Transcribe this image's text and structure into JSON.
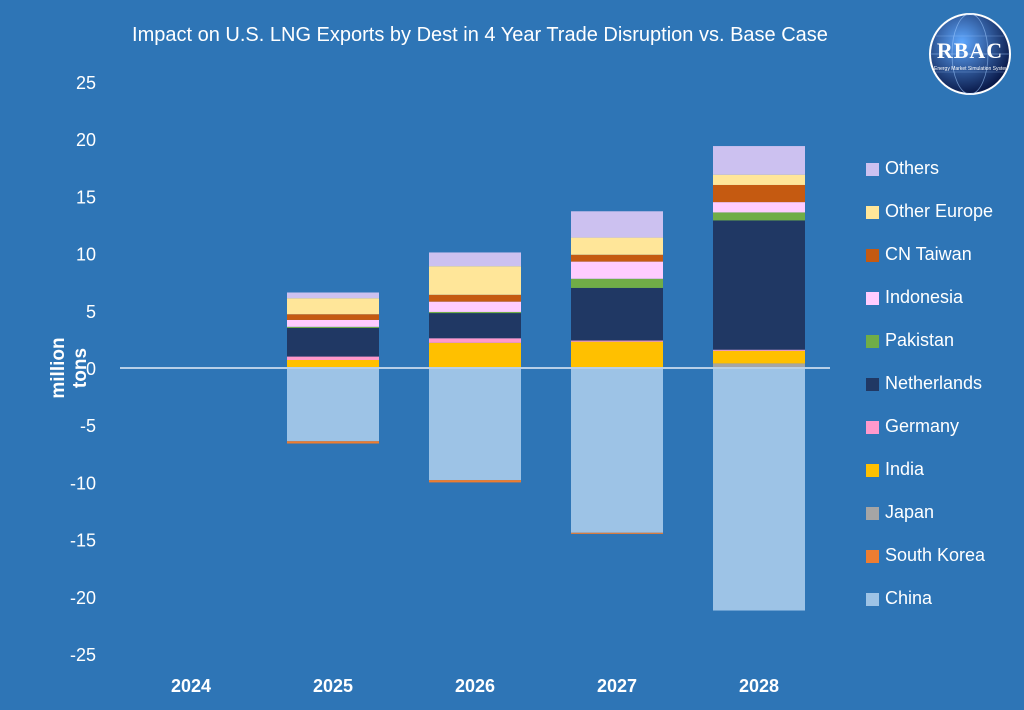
{
  "title": "Impact on U.S. LNG Exports by Dest in 4 Year Trade Disruption vs. Base Case",
  "logo": {
    "text": "RBAC",
    "subtext": "Energy Market Simulation Systems",
    "colors": {
      "globe_dark": "#0a1a4a",
      "globe_light": "#5fa8ff"
    }
  },
  "colors": {
    "background": "#2e75b6",
    "zero_line": "#b7cfe8",
    "text": "#ffffff"
  },
  "chart_data": {
    "type": "bar",
    "stacked": true,
    "categories": [
      "2024",
      "2025",
      "2026",
      "2027",
      "2028"
    ],
    "ylabel": "million tons",
    "xlabel": "",
    "ylim": [
      -25,
      25
    ],
    "yticks": [
      25,
      20,
      15,
      10,
      5,
      0,
      -5,
      -10,
      -15,
      -20,
      -25
    ],
    "grid": false,
    "legend_position": "right",
    "series": [
      {
        "name": "China",
        "color": "#9dc3e6",
        "values": [
          0,
          -6.4,
          -9.8,
          -14.4,
          -21.2
        ]
      },
      {
        "name": "South Korea",
        "color": "#ed7d31",
        "values": [
          0,
          -0.2,
          -0.2,
          -0.1,
          0
        ]
      },
      {
        "name": "Japan",
        "color": "#a5a5a5",
        "values": [
          0,
          0,
          0,
          0,
          0.4
        ]
      },
      {
        "name": "India",
        "color": "#ffc000",
        "values": [
          0,
          0.7,
          2.2,
          2.3,
          1.1
        ]
      },
      {
        "name": "Germany",
        "color": "#ff99cc",
        "values": [
          0,
          0.3,
          0.4,
          0.1,
          0.1
        ]
      },
      {
        "name": "Netherlands",
        "color": "#203864",
        "values": [
          0,
          2.5,
          2.2,
          4.6,
          11.3
        ]
      },
      {
        "name": "Pakistan",
        "color": "#70ad47",
        "values": [
          0,
          0.1,
          0.1,
          0.8,
          0.7
        ]
      },
      {
        "name": "Indonesia",
        "color": "#ffccff",
        "values": [
          0,
          0.6,
          0.9,
          1.5,
          0.9
        ]
      },
      {
        "name": "CN Taiwan",
        "color": "#c55a11",
        "values": [
          0,
          0.5,
          0.6,
          0.6,
          1.5
        ]
      },
      {
        "name": "Other Europe",
        "color": "#ffe699",
        "values": [
          0,
          1.4,
          2.5,
          1.5,
          0.9
        ]
      },
      {
        "name": "Others",
        "color": "#ccc1f0",
        "values": [
          0,
          0.5,
          1.2,
          2.3,
          2.5
        ]
      }
    ]
  }
}
